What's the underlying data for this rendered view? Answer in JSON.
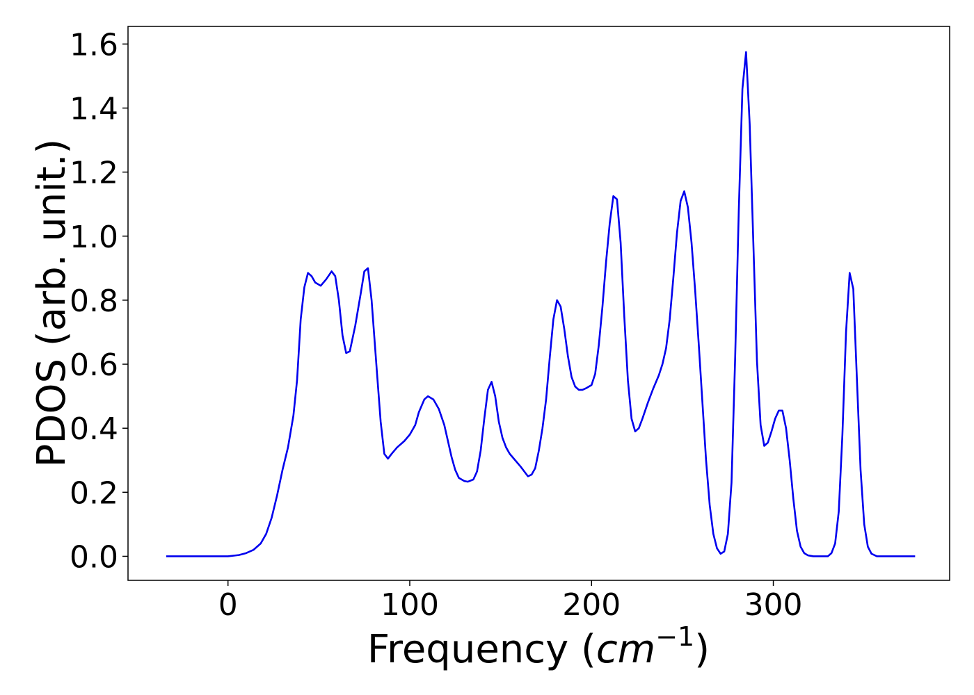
{
  "chart_data": {
    "type": "line",
    "title": "",
    "xlabel": "Frequency (",
    "xlabel_unit": "cm",
    "xlabel_exponent": "−1",
    "xlabel_close": ")",
    "ylabel": "PDOS (arb. unit.)",
    "xlim": [
      -55,
      397
    ],
    "ylim": [
      -0.075,
      1.655
    ],
    "x_ticks": [
      0,
      100,
      200,
      300
    ],
    "y_ticks": [
      0.0,
      0.2,
      0.4,
      0.6,
      0.8,
      1.0,
      1.2,
      1.4,
      1.6
    ],
    "x_tick_labels": [
      "0",
      "100",
      "200",
      "300"
    ],
    "y_tick_labels": [
      "0.0",
      "0.2",
      "0.4",
      "0.6",
      "0.8",
      "1.0",
      "1.2",
      "1.4",
      "1.6"
    ],
    "grid": false,
    "line_color": "#0000ee",
    "series": [
      {
        "values": [
          [
            -34,
            0.0
          ],
          [
            0,
            0.0
          ],
          [
            6,
            0.004
          ],
          [
            10,
            0.01
          ],
          [
            14,
            0.02
          ],
          [
            18,
            0.04
          ],
          [
            21,
            0.07
          ],
          [
            24,
            0.12
          ],
          [
            27,
            0.19
          ],
          [
            30,
            0.27
          ],
          [
            33,
            0.34
          ],
          [
            36,
            0.44
          ],
          [
            38,
            0.55
          ],
          [
            40,
            0.74
          ],
          [
            42,
            0.84
          ],
          [
            44,
            0.885
          ],
          [
            46,
            0.875
          ],
          [
            48,
            0.855
          ],
          [
            51,
            0.845
          ],
          [
            54,
            0.865
          ],
          [
            57,
            0.89
          ],
          [
            59,
            0.875
          ],
          [
            61,
            0.8
          ],
          [
            63,
            0.69
          ],
          [
            65,
            0.635
          ],
          [
            67,
            0.64
          ],
          [
            70,
            0.72
          ],
          [
            73,
            0.82
          ],
          [
            75,
            0.89
          ],
          [
            77,
            0.9
          ],
          [
            79,
            0.8
          ],
          [
            82,
            0.57
          ],
          [
            84,
            0.42
          ],
          [
            86,
            0.32
          ],
          [
            88,
            0.305
          ],
          [
            90,
            0.32
          ],
          [
            93,
            0.34
          ],
          [
            97,
            0.36
          ],
          [
            100,
            0.38
          ],
          [
            103,
            0.41
          ],
          [
            105,
            0.45
          ],
          [
            108,
            0.49
          ],
          [
            110,
            0.5
          ],
          [
            113,
            0.49
          ],
          [
            116,
            0.46
          ],
          [
            119,
            0.41
          ],
          [
            121,
            0.36
          ],
          [
            123,
            0.31
          ],
          [
            125,
            0.27
          ],
          [
            127,
            0.245
          ],
          [
            130,
            0.235
          ],
          [
            132,
            0.233
          ],
          [
            135,
            0.24
          ],
          [
            137,
            0.265
          ],
          [
            139,
            0.33
          ],
          [
            141,
            0.43
          ],
          [
            143,
            0.52
          ],
          [
            145,
            0.545
          ],
          [
            147,
            0.5
          ],
          [
            149,
            0.42
          ],
          [
            151,
            0.37
          ],
          [
            153,
            0.34
          ],
          [
            155,
            0.32
          ],
          [
            158,
            0.3
          ],
          [
            161,
            0.28
          ],
          [
            163,
            0.265
          ],
          [
            165,
            0.25
          ],
          [
            167,
            0.255
          ],
          [
            169,
            0.275
          ],
          [
            171,
            0.33
          ],
          [
            173,
            0.4
          ],
          [
            175,
            0.49
          ],
          [
            177,
            0.62
          ],
          [
            179,
            0.74
          ],
          [
            181,
            0.8
          ],
          [
            183,
            0.78
          ],
          [
            185,
            0.71
          ],
          [
            187,
            0.625
          ],
          [
            189,
            0.56
          ],
          [
            191,
            0.53
          ],
          [
            193,
            0.52
          ],
          [
            195,
            0.52
          ],
          [
            197,
            0.525
          ],
          [
            200,
            0.535
          ],
          [
            202,
            0.57
          ],
          [
            204,
            0.66
          ],
          [
            206,
            0.78
          ],
          [
            208,
            0.92
          ],
          [
            210,
            1.04
          ],
          [
            212,
            1.125
          ],
          [
            214,
            1.115
          ],
          [
            216,
            0.98
          ],
          [
            218,
            0.75
          ],
          [
            220,
            0.55
          ],
          [
            222,
            0.43
          ],
          [
            224,
            0.39
          ],
          [
            226,
            0.4
          ],
          [
            228,
            0.43
          ],
          [
            231,
            0.48
          ],
          [
            234,
            0.525
          ],
          [
            237,
            0.565
          ],
          [
            239,
            0.6
          ],
          [
            241,
            0.65
          ],
          [
            243,
            0.74
          ],
          [
            245,
            0.87
          ],
          [
            247,
            1.01
          ],
          [
            249,
            1.11
          ],
          [
            251,
            1.14
          ],
          [
            253,
            1.09
          ],
          [
            255,
            0.98
          ],
          [
            257,
            0.83
          ],
          [
            259,
            0.66
          ],
          [
            261,
            0.48
          ],
          [
            263,
            0.3
          ],
          [
            265,
            0.16
          ],
          [
            267,
            0.07
          ],
          [
            269,
            0.025
          ],
          [
            271,
            0.008
          ],
          [
            273,
            0.015
          ],
          [
            275,
            0.07
          ],
          [
            277,
            0.23
          ],
          [
            279,
            0.62
          ],
          [
            281,
            1.08
          ],
          [
            283,
            1.46
          ],
          [
            285,
            1.575
          ],
          [
            287,
            1.35
          ],
          [
            289,
            0.98
          ],
          [
            291,
            0.61
          ],
          [
            293,
            0.41
          ],
          [
            295,
            0.345
          ],
          [
            297,
            0.355
          ],
          [
            299,
            0.39
          ],
          [
            301,
            0.43
          ],
          [
            303,
            0.455
          ],
          [
            305,
            0.455
          ],
          [
            307,
            0.4
          ],
          [
            309,
            0.3
          ],
          [
            311,
            0.18
          ],
          [
            313,
            0.08
          ],
          [
            315,
            0.03
          ],
          [
            317,
            0.01
          ],
          [
            319,
            0.003
          ],
          [
            322,
            0.0
          ],
          [
            326,
            0.0
          ],
          [
            330,
            0.0
          ],
          [
            332,
            0.01
          ],
          [
            334,
            0.04
          ],
          [
            336,
            0.14
          ],
          [
            338,
            0.38
          ],
          [
            340,
            0.7
          ],
          [
            342,
            0.885
          ],
          [
            344,
            0.835
          ],
          [
            346,
            0.55
          ],
          [
            348,
            0.27
          ],
          [
            350,
            0.1
          ],
          [
            352,
            0.03
          ],
          [
            354,
            0.008
          ],
          [
            357,
            0.0
          ],
          [
            378,
            0.0
          ]
        ]
      }
    ]
  }
}
